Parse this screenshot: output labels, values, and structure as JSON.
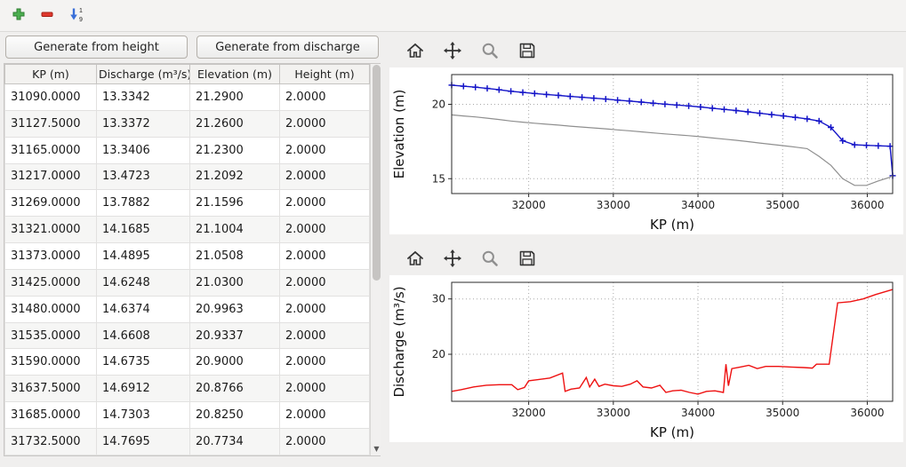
{
  "toolbar": {
    "icons": [
      "add-icon",
      "remove-icon",
      "sort-descending-icon"
    ],
    "sort_digits": [
      "1",
      "9"
    ],
    "add_color": "#3fa64a",
    "remove_color": "#e0382e",
    "sort_color": "#3a6fd8"
  },
  "buttons": {
    "generate_from_height": "Generate from height",
    "generate_from_discharge": "Generate from discharge"
  },
  "table": {
    "columns": [
      "KP (m)",
      "Discharge (m³/s)",
      "Elevation (m)",
      "Height (m)"
    ],
    "rows": [
      [
        "31090.0000",
        "13.3342",
        "21.2900",
        "2.0000"
      ],
      [
        "31127.5000",
        "13.3372",
        "21.2600",
        "2.0000"
      ],
      [
        "31165.0000",
        "13.3406",
        "21.2300",
        "2.0000"
      ],
      [
        "31217.0000",
        "13.4723",
        "21.2092",
        "2.0000"
      ],
      [
        "31269.0000",
        "13.7882",
        "21.1596",
        "2.0000"
      ],
      [
        "31321.0000",
        "14.1685",
        "21.1004",
        "2.0000"
      ],
      [
        "31373.0000",
        "14.4895",
        "21.0508",
        "2.0000"
      ],
      [
        "31425.0000",
        "14.6248",
        "21.0300",
        "2.0000"
      ],
      [
        "31480.0000",
        "14.6374",
        "20.9963",
        "2.0000"
      ],
      [
        "31535.0000",
        "14.6608",
        "20.9337",
        "2.0000"
      ],
      [
        "31590.0000",
        "14.6735",
        "20.9000",
        "2.0000"
      ],
      [
        "31637.5000",
        "14.6912",
        "20.8766",
        "2.0000"
      ],
      [
        "31685.0000",
        "14.7303",
        "20.8250",
        "2.0000"
      ],
      [
        "31732.5000",
        "14.7695",
        "20.7734",
        "2.0000"
      ]
    ]
  },
  "chart_toolbars": {
    "icons": [
      "home-icon",
      "pan-icon",
      "zoom-icon",
      "save-icon"
    ]
  },
  "chart_data": [
    {
      "type": "line",
      "title": "",
      "xlabel": "KP (m)",
      "ylabel": "Elevation (m)",
      "xlim": [
        31090,
        36300
      ],
      "ylim": [
        14,
        22
      ],
      "xticks": [
        32000,
        33000,
        34000,
        35000,
        36000
      ],
      "yticks": [
        15,
        20
      ],
      "grid": "dotted",
      "legend": "none",
      "series": [
        {
          "name": "elevation-blue-plus",
          "color": "#1515c8",
          "marker": "+",
          "width": 1.4,
          "x": [
            31090,
            31230,
            31370,
            31510,
            31650,
            31790,
            31930,
            32070,
            32210,
            32350,
            32490,
            32630,
            32770,
            32910,
            33050,
            33190,
            33330,
            33470,
            33610,
            33750,
            33890,
            34030,
            34170,
            34310,
            34450,
            34590,
            34730,
            34870,
            35010,
            35150,
            35290,
            35430,
            35570,
            35710,
            35850,
            35990,
            36130,
            36270,
            36300
          ],
          "y": [
            21.29,
            21.22,
            21.15,
            21.07,
            20.98,
            20.88,
            20.8,
            20.73,
            20.66,
            20.6,
            20.53,
            20.47,
            20.41,
            20.35,
            20.28,
            20.22,
            20.15,
            20.08,
            20.01,
            19.95,
            19.89,
            19.82,
            19.74,
            19.66,
            19.58,
            19.49,
            19.4,
            19.31,
            19.22,
            19.12,
            19.02,
            18.88,
            18.45,
            17.55,
            17.28,
            17.24,
            17.21,
            17.18,
            15.2
          ]
        },
        {
          "name": "bed-level-gray",
          "color": "#8f8f8f",
          "marker": "none",
          "width": 1.2,
          "x": [
            31090,
            31230,
            31370,
            31510,
            31650,
            31790,
            31930,
            32070,
            32210,
            32350,
            32490,
            32630,
            32770,
            32910,
            33050,
            33190,
            33330,
            33470,
            33610,
            33750,
            33890,
            34030,
            34170,
            34310,
            34450,
            34590,
            34730,
            34870,
            35010,
            35150,
            35290,
            35430,
            35570,
            35710,
            35850,
            35990,
            36130,
            36270,
            36300
          ],
          "y": [
            19.29,
            19.22,
            19.15,
            19.07,
            18.98,
            18.88,
            18.8,
            18.73,
            18.66,
            18.6,
            18.53,
            18.47,
            18.41,
            18.35,
            18.28,
            18.22,
            18.15,
            18.08,
            18.01,
            17.95,
            17.89,
            17.82,
            17.74,
            17.66,
            17.58,
            17.49,
            17.4,
            17.31,
            17.22,
            17.12,
            17.02,
            16.5,
            15.9,
            15.0,
            14.55,
            14.55,
            14.85,
            15.1,
            15.2
          ]
        }
      ]
    },
    {
      "type": "line",
      "title": "",
      "xlabel": "KP (m)",
      "ylabel": "Discharge (m³/s)",
      "xlim": [
        31090,
        36300
      ],
      "ylim": [
        11.5,
        33
      ],
      "xticks": [
        32000,
        33000,
        34000,
        35000,
        36000
      ],
      "yticks": [
        20,
        30
      ],
      "grid": "dotted",
      "legend": "none",
      "series": [
        {
          "name": "discharge-red",
          "color": "#ee1111",
          "marker": "none",
          "width": 1.4,
          "x": [
            31090,
            31200,
            31350,
            31500,
            31650,
            31800,
            31870,
            31950,
            32000,
            32100,
            32250,
            32400,
            32430,
            32500,
            32600,
            32680,
            32720,
            32780,
            32830,
            32900,
            33000,
            33100,
            33200,
            33280,
            33350,
            33450,
            33550,
            33620,
            33700,
            33800,
            33900,
            34000,
            34100,
            34200,
            34300,
            34330,
            34360,
            34400,
            34500,
            34600,
            34700,
            34800,
            34950,
            35100,
            35250,
            35350,
            35400,
            35550,
            35650,
            35800,
            35950,
            36100,
            36300
          ],
          "y": [
            13.3,
            13.6,
            14.1,
            14.4,
            14.5,
            14.5,
            13.6,
            14.0,
            15.2,
            15.4,
            15.7,
            16.6,
            13.3,
            13.7,
            13.9,
            15.8,
            14.1,
            15.5,
            14.2,
            14.6,
            14.3,
            14.2,
            14.6,
            15.2,
            14.1,
            13.9,
            14.4,
            13.1,
            13.4,
            13.5,
            13.1,
            12.8,
            13.3,
            13.4,
            13.1,
            18.2,
            14.3,
            17.4,
            17.7,
            18.0,
            17.4,
            17.8,
            17.8,
            17.7,
            17.6,
            17.5,
            18.2,
            18.2,
            29.3,
            29.5,
            30.0,
            30.8,
            31.7
          ]
        }
      ]
    }
  ]
}
